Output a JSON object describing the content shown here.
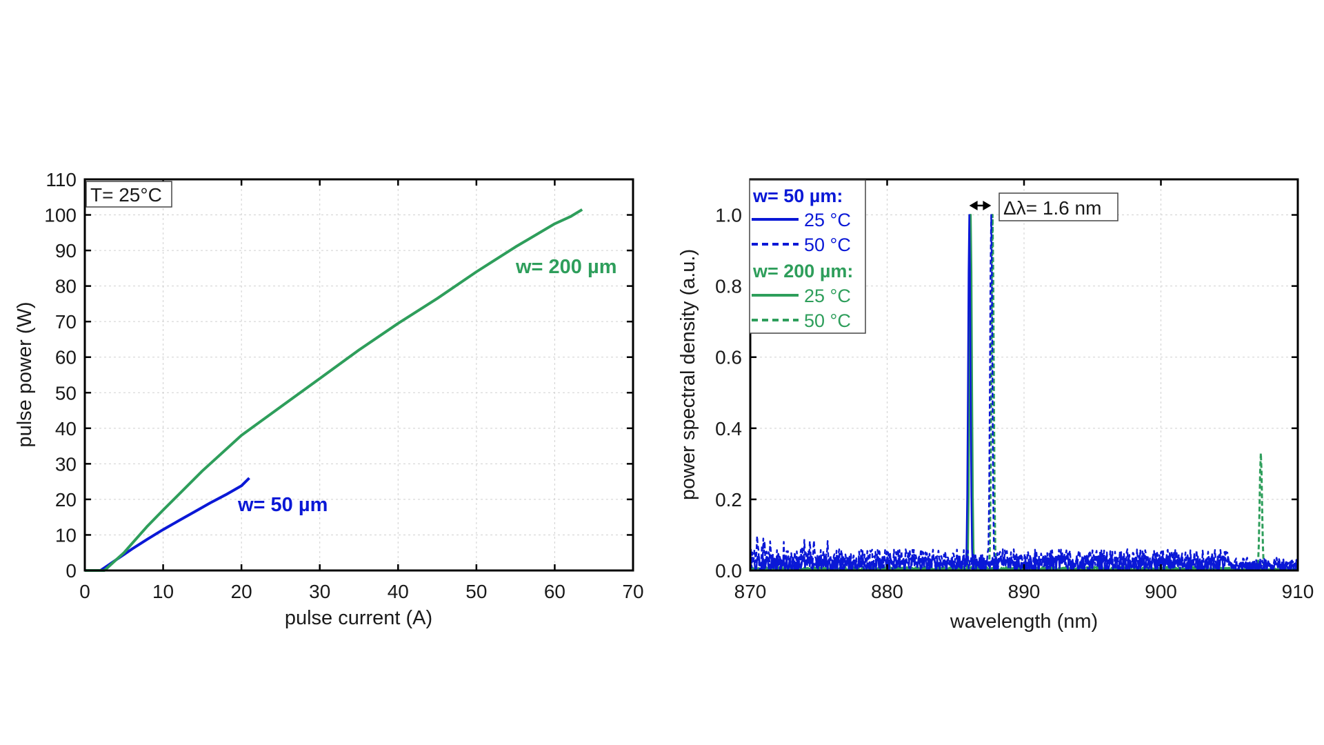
{
  "colors": {
    "blue": "#0a18d6",
    "green": "#2e9e5b",
    "text": "#1a1a1a"
  },
  "chart_data": [
    {
      "type": "line",
      "title": "",
      "xlabel": "pulse current (A)",
      "ylabel": "pulse power (W)",
      "xlim": [
        0,
        70
      ],
      "ylim": [
        0,
        110
      ],
      "xticks": [
        0,
        10,
        20,
        30,
        40,
        50,
        60,
        70
      ],
      "yticks": [
        0,
        10,
        20,
        30,
        40,
        50,
        60,
        70,
        80,
        90,
        100,
        110
      ],
      "grid": true,
      "annotation_box": "T= 25°C",
      "series": [
        {
          "name": "w= 50 µm",
          "color": "#0a18d6",
          "style": "solid",
          "x": [
            0,
            2,
            3,
            4,
            5,
            6,
            8,
            10,
            12,
            14,
            16,
            18,
            20,
            21
          ],
          "y": [
            0,
            0,
            1.5,
            3,
            4.5,
            6,
            8.8,
            11.5,
            14,
            16.5,
            19,
            21.3,
            23.8,
            26
          ]
        },
        {
          "name": "w= 200 µm",
          "color": "#2e9e5b",
          "style": "solid",
          "x": [
            0,
            2.5,
            4,
            5,
            6,
            8,
            10,
            15,
            20,
            25,
            30,
            35,
            40,
            45,
            50,
            55,
            60,
            62,
            63.5
          ],
          "y": [
            0,
            0,
            3,
            5,
            7.5,
            12.5,
            17,
            28,
            38,
            46,
            54,
            62,
            69.5,
            76.5,
            84,
            91,
            97.5,
            99.5,
            101.5
          ]
        }
      ]
    },
    {
      "type": "line",
      "title": "",
      "xlabel": "wavelength (nm)",
      "ylabel": "power spectral density (a.u.)",
      "xlim": [
        870,
        910
      ],
      "ylim": [
        0,
        1.1
      ],
      "xticks": [
        870,
        880,
        890,
        900,
        910
      ],
      "yticks": [
        0.0,
        0.2,
        0.4,
        0.6,
        0.8,
        1.0
      ],
      "grid": true,
      "legend_position": "top-left",
      "legend_groups": [
        {
          "title": "w= 50 µm:",
          "color": "#0a18d6",
          "entries": [
            "25 °C",
            "50 °C"
          ]
        },
        {
          "title": "w= 200 µm:",
          "color": "#2e9e5b",
          "entries": [
            "25 °C",
            "50 °C"
          ]
        }
      ],
      "annotation_box": "Δλ= 1.6 nm",
      "annotation_arrow_x": [
        886.0,
        887.6
      ],
      "series": [
        {
          "name": "25 °C",
          "group": "w= 50 µm",
          "color": "#0a18d6",
          "style": "solid",
          "peaks": [
            {
              "x": 886.0,
              "y": 1.0
            }
          ],
          "noise_level": 0.04
        },
        {
          "name": "50 °C",
          "group": "w= 50 µm",
          "color": "#0a18d6",
          "style": "dashed",
          "peaks": [
            {
              "x": 887.6,
              "y": 1.0
            }
          ],
          "noise_level": 0.06
        },
        {
          "name": "25 °C",
          "group": "w= 200 µm",
          "color": "#2e9e5b",
          "style": "solid",
          "peaks": [
            {
              "x": 886.1,
              "y": 1.0
            }
          ],
          "noise_level": 0.008
        },
        {
          "name": "50 °C",
          "group": "w= 200 µm",
          "color": "#2e9e5b",
          "style": "dashed",
          "peaks": [
            {
              "x": 887.7,
              "y": 1.0
            },
            {
              "x": 907.3,
              "y": 0.33
            }
          ],
          "noise_level": 0.01
        }
      ]
    }
  ]
}
